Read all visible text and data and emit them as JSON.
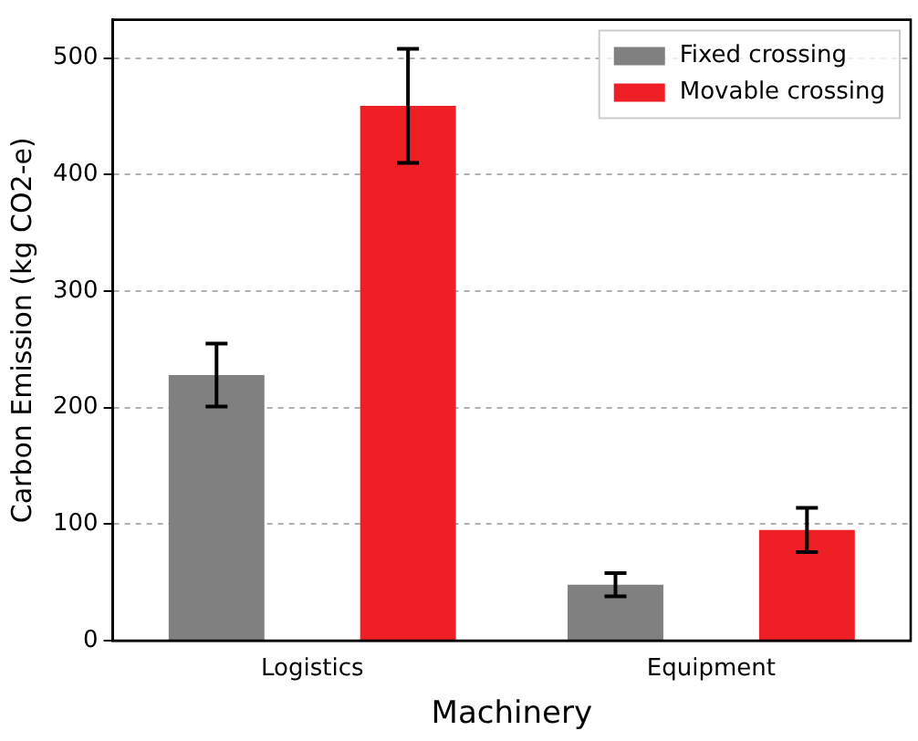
{
  "chart_data": {
    "type": "bar",
    "xlabel": "Machinery",
    "ylabel": "Carbon Emission (kg CO2-e)",
    "categories": [
      "Logistics",
      "Equipment"
    ],
    "series": [
      {
        "name": "Fixed crossing",
        "color": "#808080",
        "values": [
          228,
          48
        ],
        "errors": [
          27,
          10
        ]
      },
      {
        "name": "Movable crossing",
        "color": "#ee1f25",
        "values": [
          459,
          95
        ],
        "errors": [
          49,
          19
        ]
      }
    ],
    "ylim": [
      0,
      533
    ],
    "yticks": [
      0,
      100,
      200,
      300,
      400,
      500
    ],
    "grid": "y",
    "legend": "top right"
  }
}
